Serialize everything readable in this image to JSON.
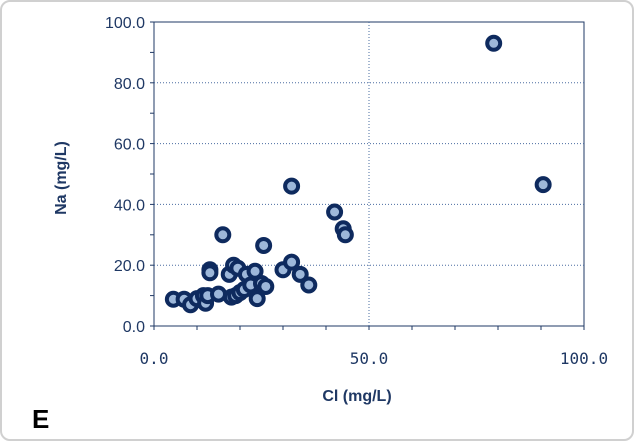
{
  "chart_data": {
    "type": "scatter",
    "panel_label": "E",
    "xlabel": "Cl (mg/L)",
    "ylabel": "Na (mg/L)",
    "xlim": [
      0,
      100
    ],
    "ylim": [
      0,
      100
    ],
    "x_ticks": [
      "0.0",
      "50.0",
      "100.0"
    ],
    "y_ticks": [
      "0.0",
      "20.0",
      "40.0",
      "60.0",
      "80.0",
      "100.0"
    ],
    "grid": "dotted",
    "legend": "none",
    "marker_color": "#0e2a5e",
    "marker_fill": "#9db7d9",
    "series": [
      {
        "points": [
          [
            4.5,
            8.8
          ],
          [
            7.0,
            8.8
          ],
          [
            8.5,
            7.0
          ],
          [
            10.0,
            9.0
          ],
          [
            11.5,
            10.0
          ],
          [
            12.0,
            7.5
          ],
          [
            12.5,
            10.0
          ],
          [
            13.0,
            18.5
          ],
          [
            13.0,
            17.5
          ],
          [
            15.0,
            10.5
          ],
          [
            16.0,
            30.0
          ],
          [
            17.5,
            17.0
          ],
          [
            18.0,
            9.5
          ],
          [
            18.5,
            20.0
          ],
          [
            19.0,
            10.0
          ],
          [
            19.5,
            19.0
          ],
          [
            20.0,
            11.0
          ],
          [
            21.0,
            12.0
          ],
          [
            21.5,
            17.0
          ],
          [
            22.5,
            13.5
          ],
          [
            23.5,
            18.0
          ],
          [
            24.0,
            9.0
          ],
          [
            25.0,
            14.0
          ],
          [
            25.5,
            26.5
          ],
          [
            26.0,
            13.0
          ],
          [
            30.0,
            18.5
          ],
          [
            32.0,
            46.0
          ],
          [
            32.0,
            21.0
          ],
          [
            34.0,
            17.0
          ],
          [
            36.0,
            13.5
          ],
          [
            42.0,
            37.5
          ],
          [
            44.0,
            32.0
          ],
          [
            44.5,
            30.0
          ],
          [
            79.0,
            93.0
          ],
          [
            90.5,
            46.5
          ]
        ]
      }
    ]
  }
}
